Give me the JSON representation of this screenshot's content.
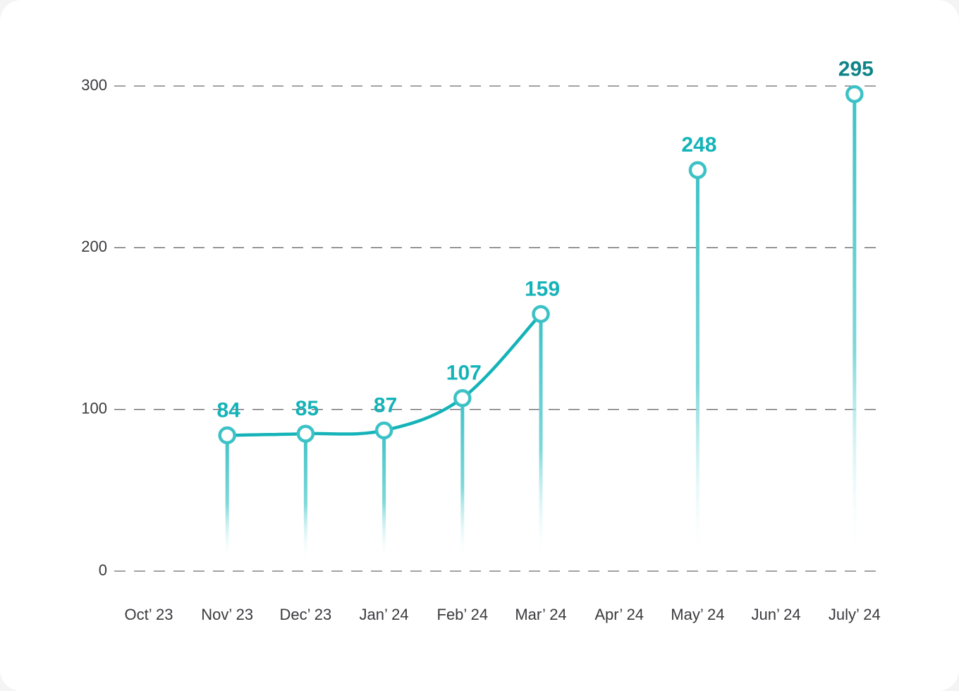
{
  "chart_data": {
    "type": "line",
    "categories": [
      "Oct’ 23",
      "Nov’ 23",
      "Dec’ 23",
      "Jan’ 24",
      "Feb’ 24",
      "Mar’ 24",
      "Apr’ 24",
      "May’ 24",
      "Jun’ 24",
      "July’ 24"
    ],
    "values": [
      null,
      84,
      85,
      87,
      107,
      159,
      null,
      248,
      null,
      295
    ],
    "color": "#14b3b8",
    "ylim": [
      0,
      300
    ],
    "yticks": [
      0,
      100,
      200,
      300
    ],
    "grid": true
  }
}
